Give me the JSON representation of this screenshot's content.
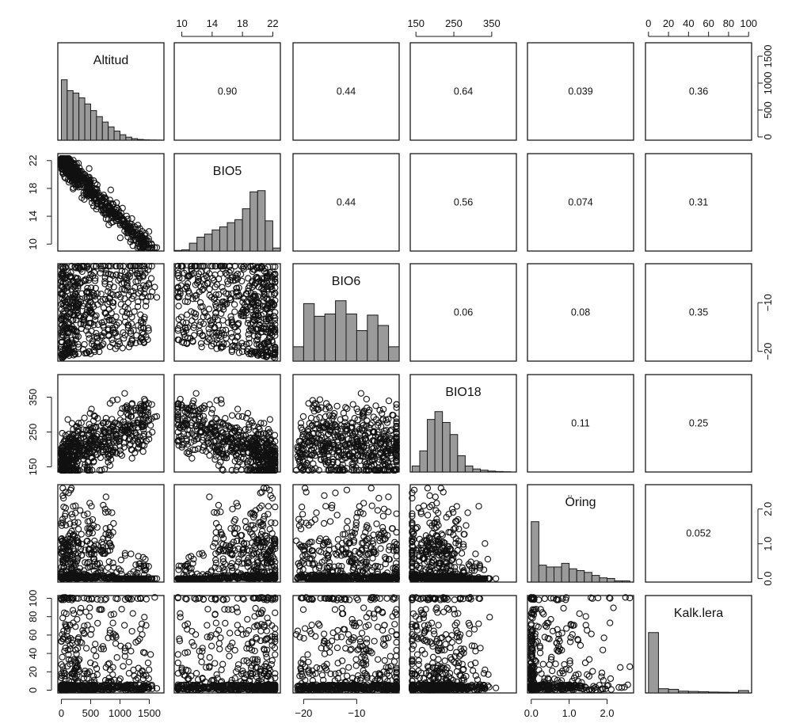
{
  "chart_data": {
    "type": "scatter",
    "kind": "pairs-matrix",
    "variables": [
      "Altitud",
      "BIO5",
      "BIO6",
      "BIO18",
      "Öring",
      "Kalk.lera"
    ],
    "correlations": [
      {
        "row": 0,
        "col": 1,
        "value": "0.90"
      },
      {
        "row": 0,
        "col": 2,
        "value": "0.44"
      },
      {
        "row": 0,
        "col": 3,
        "value": "0.64"
      },
      {
        "row": 0,
        "col": 4,
        "value": "0.039"
      },
      {
        "row": 0,
        "col": 5,
        "value": "0.36"
      },
      {
        "row": 1,
        "col": 2,
        "value": "0.44"
      },
      {
        "row": 1,
        "col": 3,
        "value": "0.56"
      },
      {
        "row": 1,
        "col": 4,
        "value": "0.074"
      },
      {
        "row": 1,
        "col": 5,
        "value": "0.31"
      },
      {
        "row": 2,
        "col": 3,
        "value": "0.06"
      },
      {
        "row": 2,
        "col": 4,
        "value": "0.08"
      },
      {
        "row": 2,
        "col": 5,
        "value": "0.35"
      },
      {
        "row": 3,
        "col": 4,
        "value": "0.11"
      },
      {
        "row": 3,
        "col": 5,
        "value": "0.25"
      },
      {
        "row": 4,
        "col": 5,
        "value": "0.052"
      }
    ],
    "ranges": {
      "Altitud": [
        -60,
        1750
      ],
      "BIO5": [
        9,
        23
      ],
      "BIO6": [
        -22,
        -2
      ],
      "BIO18": [
        135,
        415
      ],
      "Öring": [
        -0.1,
        2.7
      ],
      "Kalk.lera": [
        -3,
        103
      ]
    },
    "ticks": {
      "Altitud": [
        {
          "v": 0,
          "label": "0"
        },
        {
          "v": 500,
          "label": "500"
        },
        {
          "v": 1000,
          "label": "1000"
        },
        {
          "v": 1500,
          "label": "1500"
        }
      ],
      "BIO5": [
        {
          "v": 10,
          "label": "10"
        },
        {
          "v": 14,
          "label": "14"
        },
        {
          "v": 18,
          "label": "18"
        },
        {
          "v": 22,
          "label": "22"
        }
      ],
      "BIO6": [
        {
          "v": -20,
          "label": "−20"
        },
        {
          "v": -10,
          "label": "−10"
        }
      ],
      "BIO18": [
        {
          "v": 150,
          "label": "150"
        },
        {
          "v": 250,
          "label": "250"
        },
        {
          "v": 350,
          "label": "350"
        }
      ],
      "Öring": [
        {
          "v": 0,
          "label": "0.0"
        },
        {
          "v": 1,
          "label": "1.0"
        },
        {
          "v": 2,
          "label": "2.0"
        }
      ],
      "Kalk.lera": [
        {
          "v": 0,
          "label": "0"
        },
        {
          "v": 20,
          "label": "20"
        },
        {
          "v": 40,
          "label": "40"
        },
        {
          "v": 60,
          "label": "60"
        },
        {
          "v": 80,
          "label": "80"
        },
        {
          "v": 100,
          "label": "100"
        }
      ]
    },
    "histograms": {
      "Altitud": {
        "bins": [
          0,
          100,
          200,
          300,
          400,
          500,
          600,
          700,
          800,
          900,
          1000,
          1100,
          1200,
          1300,
          1400,
          1500,
          1600,
          1700
        ],
        "density": [
          1.0,
          0.82,
          0.78,
          0.7,
          0.6,
          0.49,
          0.39,
          0.3,
          0.22,
          0.15,
          0.09,
          0.05,
          0.025,
          0.012,
          0.006,
          0.003,
          0.002
        ]
      },
      "BIO5": {
        "bins": [
          9,
          10,
          11,
          12,
          13,
          14,
          15,
          16,
          17,
          18,
          19,
          20,
          21,
          22,
          23
        ],
        "density": [
          0.01,
          0.02,
          0.13,
          0.23,
          0.28,
          0.35,
          0.4,
          0.47,
          0.52,
          0.7,
          0.98,
          1.0,
          0.5,
          0.05
        ]
      },
      "BIO6": {
        "bins": [
          -22,
          -20,
          -18,
          -16,
          -14,
          -12,
          -10,
          -8,
          -6,
          -4,
          -2
        ],
        "density": [
          0.25,
          1.0,
          0.78,
          0.82,
          1.05,
          0.82,
          0.53,
          0.8,
          0.62,
          0.25
        ]
      },
      "BIO18": {
        "bins": [
          140,
          160,
          180,
          200,
          220,
          240,
          260,
          280,
          300,
          320,
          340,
          360,
          380,
          400
        ],
        "density": [
          0.1,
          0.35,
          0.87,
          1.0,
          0.82,
          0.62,
          0.27,
          0.1,
          0.05,
          0.03,
          0.015,
          0.008,
          0.004
        ]
      },
      "Öring": {
        "bins": [
          0,
          0.2,
          0.4,
          0.6,
          0.8,
          1.0,
          1.2,
          1.4,
          1.6,
          1.8,
          2.0,
          2.2,
          2.4,
          2.6
        ],
        "density": [
          1.0,
          0.28,
          0.25,
          0.25,
          0.31,
          0.22,
          0.19,
          0.16,
          0.11,
          0.07,
          0.06,
          0.02,
          0.02
        ]
      },
      "Kalk.lera": {
        "bins": [
          0,
          10,
          20,
          30,
          40,
          50,
          60,
          70,
          80,
          90,
          100
        ],
        "density": [
          1.0,
          0.07,
          0.06,
          0.03,
          0.025,
          0.02,
          0.015,
          0.012,
          0.01,
          0.04
        ]
      }
    }
  }
}
